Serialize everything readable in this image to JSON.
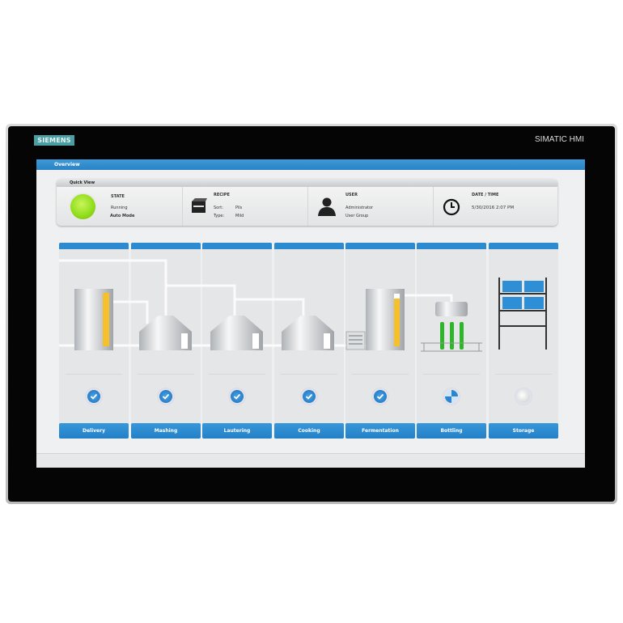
{
  "device": {
    "brand_logo": "SIEMENS",
    "model": "SIMATIC HMI"
  },
  "header": {
    "title": "Overview"
  },
  "quick_view": {
    "title": "Quick View",
    "state": {
      "label": "STATE",
      "status": "Running",
      "mode": "Auto Mode",
      "indicator_color": "#8fdc1a"
    },
    "recipe": {
      "label": "RECIPE",
      "sort_label": "Sort:",
      "sort_value": "Pils",
      "type_label": "Type:",
      "type_value": "Mild"
    },
    "user": {
      "label": "USER",
      "name": "Administrator",
      "group": "User Group"
    },
    "datetime": {
      "label": "DATE / TIME",
      "value": "5/30/2016 2:07 PM"
    }
  },
  "process_steps": [
    {
      "label": "Delivery",
      "status": "done"
    },
    {
      "label": "Mashing",
      "status": "done"
    },
    {
      "label": "Lautering",
      "status": "done"
    },
    {
      "label": "Cooking",
      "status": "done"
    },
    {
      "label": "Fermentation",
      "status": "done"
    },
    {
      "label": "Bottling",
      "status": "in-progress"
    },
    {
      "label": "Storage",
      "status": "idle"
    }
  ],
  "colors": {
    "accent": "#2b8ad0",
    "level": "#f5c02a",
    "bottle": "#2fb52a"
  }
}
